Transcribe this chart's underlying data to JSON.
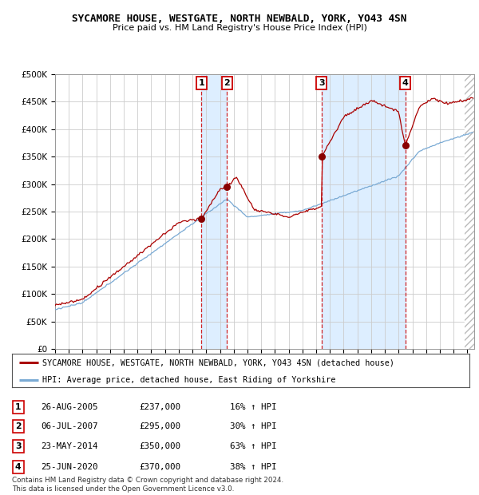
{
  "title": "SYCAMORE HOUSE, WESTGATE, NORTH NEWBALD, YORK, YO43 4SN",
  "subtitle": "Price paid vs. HM Land Registry's House Price Index (HPI)",
  "ylim": [
    0,
    500000
  ],
  "yticks": [
    0,
    50000,
    100000,
    150000,
    200000,
    250000,
    300000,
    350000,
    400000,
    450000,
    500000
  ],
  "ytick_labels": [
    "£0",
    "£50K",
    "£100K",
    "£150K",
    "£200K",
    "£250K",
    "£300K",
    "£350K",
    "£400K",
    "£450K",
    "£500K"
  ],
  "xlim_start": 1995,
  "xlim_end": 2025.5,
  "hpi_color": "#7aaad4",
  "price_color": "#aa0000",
  "shade_color": "#ddeeff",
  "purchase_dates": [
    2005.65,
    2007.51,
    2014.39,
    2020.48
  ],
  "purchase_prices": [
    237000,
    295000,
    350000,
    370000
  ],
  "purchase_labels": [
    "1",
    "2",
    "3",
    "4"
  ],
  "legend_line1": "SYCAMORE HOUSE, WESTGATE, NORTH NEWBALD, YORK, YO43 4SN (detached house)",
  "legend_line2": "HPI: Average price, detached house, East Riding of Yorkshire",
  "table_entries": [
    {
      "num": "1",
      "date": "26-AUG-2005",
      "price": "£237,000",
      "change": "16% ↑ HPI"
    },
    {
      "num": "2",
      "date": "06-JUL-2007",
      "price": "£295,000",
      "change": "30% ↑ HPI"
    },
    {
      "num": "3",
      "date": "23-MAY-2014",
      "price": "£350,000",
      "change": "63% ↑ HPI"
    },
    {
      "num": "4",
      "date": "25-JUN-2020",
      "price": "£370,000",
      "change": "38% ↑ HPI"
    }
  ],
  "footer": "Contains HM Land Registry data © Crown copyright and database right 2024.\nThis data is licensed under the Open Government Licence v3.0."
}
